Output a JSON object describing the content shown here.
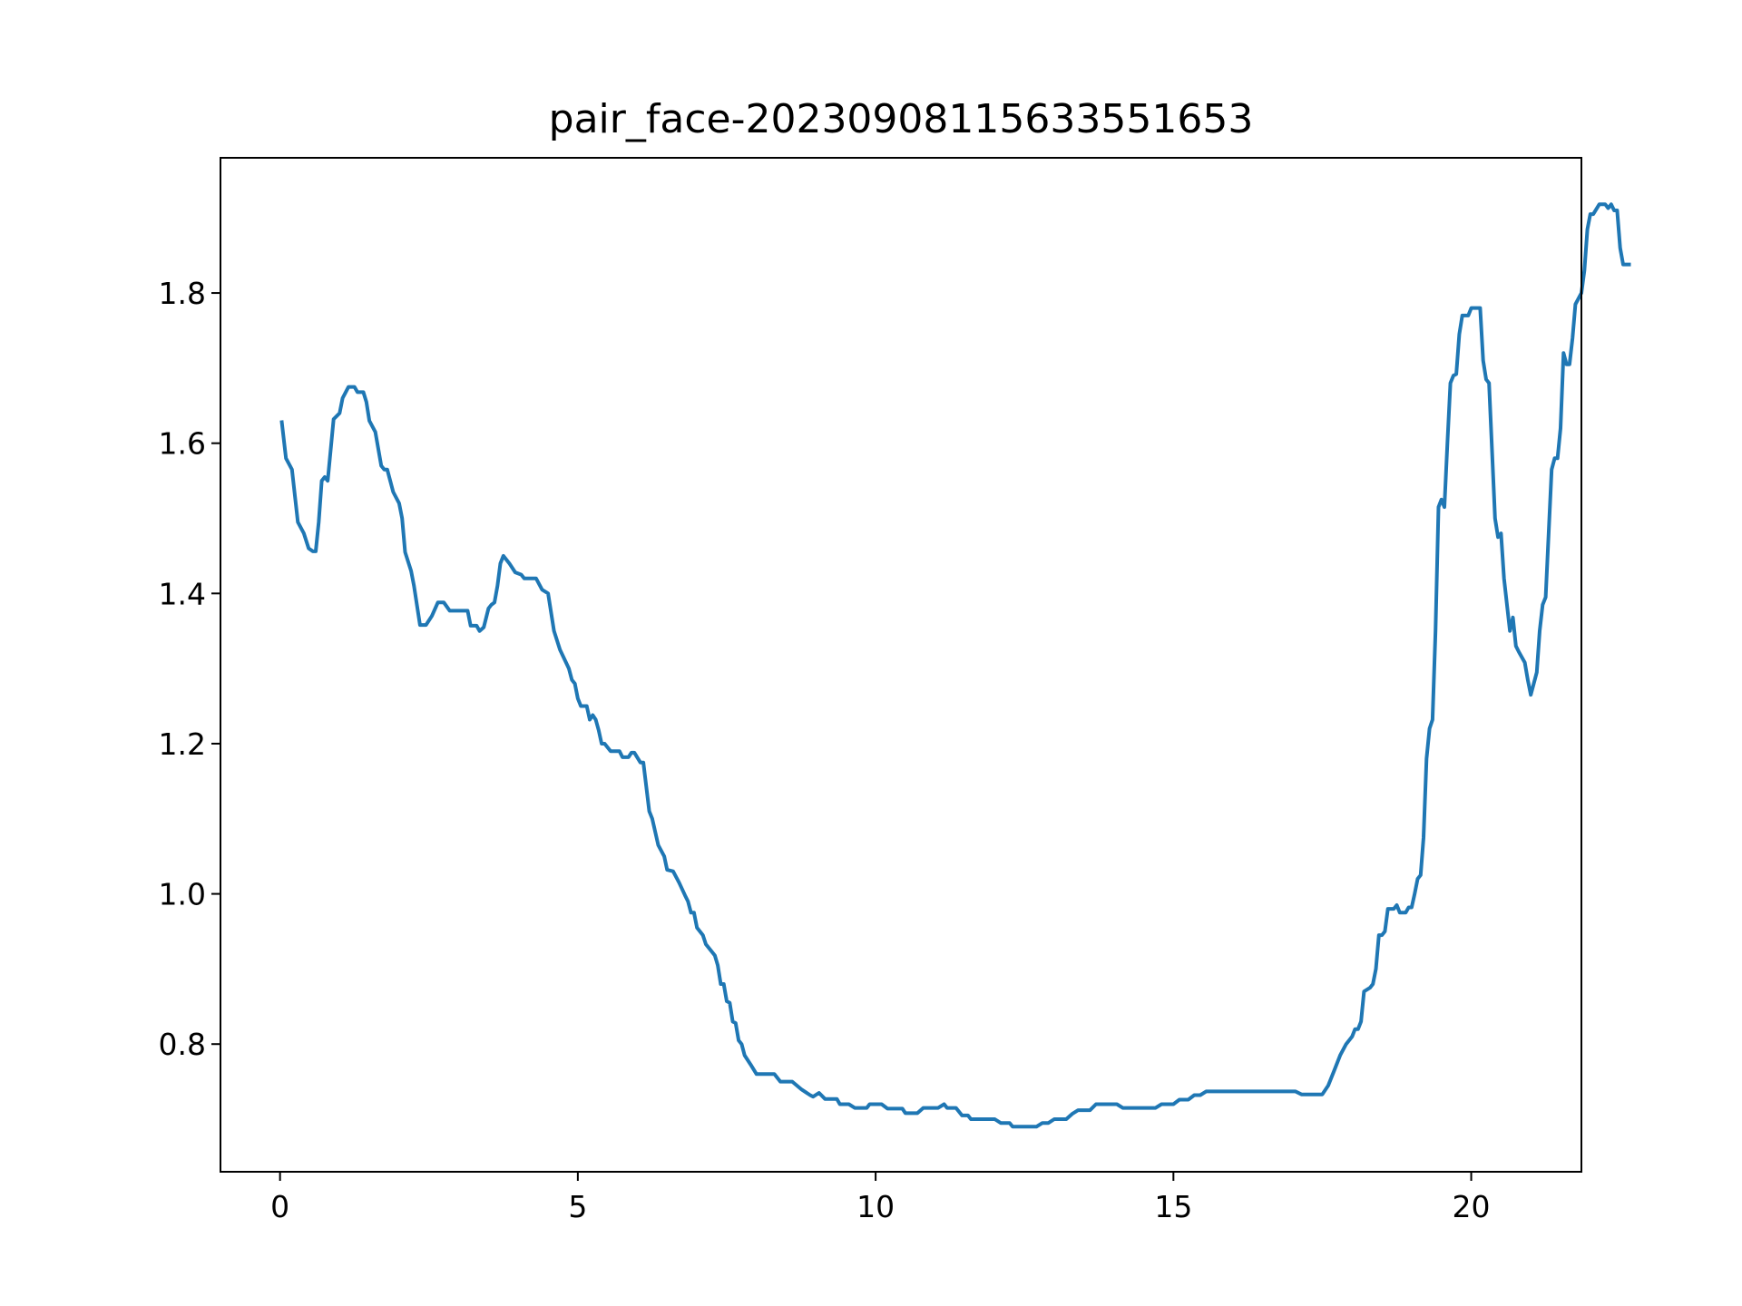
{
  "chart_data": {
    "type": "line",
    "title": "pair_face-20230908115633551653",
    "xlabel": "",
    "ylabel": "",
    "xlim": [
      -1.0,
      21.85
    ],
    "ylim": [
      0.63,
      1.98
    ],
    "grid": false,
    "legend": "none",
    "line_color": "#1f77b4",
    "xticks": [
      0,
      5,
      10,
      15,
      20
    ],
    "xtick_labels": [
      "0",
      "5",
      "10",
      "15",
      "20"
    ],
    "yticks": [
      0.8,
      1.0,
      1.2,
      1.4,
      1.6,
      1.8
    ],
    "ytick_labels": [
      "0.8",
      "1.0",
      "1.2",
      "1.4",
      "1.6",
      "1.8"
    ],
    "series": [
      {
        "points": [
          [
            0.03,
            1.628
          ],
          [
            0.1,
            1.58
          ],
          [
            0.2,
            1.565
          ],
          [
            0.3,
            1.495
          ],
          [
            0.4,
            1.48
          ],
          [
            0.48,
            1.46
          ],
          [
            0.55,
            1.456
          ],
          [
            0.6,
            1.456
          ],
          [
            0.65,
            1.495
          ],
          [
            0.7,
            1.55
          ],
          [
            0.75,
            1.555
          ],
          [
            0.8,
            1.55
          ],
          [
            0.9,
            1.632
          ],
          [
            1.0,
            1.64
          ],
          [
            1.05,
            1.66
          ],
          [
            1.15,
            1.675
          ],
          [
            1.25,
            1.675
          ],
          [
            1.3,
            1.668
          ],
          [
            1.4,
            1.668
          ],
          [
            1.45,
            1.655
          ],
          [
            1.5,
            1.63
          ],
          [
            1.6,
            1.615
          ],
          [
            1.7,
            1.57
          ],
          [
            1.75,
            1.565
          ],
          [
            1.8,
            1.565
          ],
          [
            1.9,
            1.535
          ],
          [
            2.0,
            1.52
          ],
          [
            2.05,
            1.5
          ],
          [
            2.1,
            1.455
          ],
          [
            2.2,
            1.43
          ],
          [
            2.25,
            1.41
          ],
          [
            2.35,
            1.358
          ],
          [
            2.45,
            1.358
          ],
          [
            2.55,
            1.37
          ],
          [
            2.65,
            1.388
          ],
          [
            2.75,
            1.388
          ],
          [
            2.85,
            1.377
          ],
          [
            3.05,
            1.377
          ],
          [
            3.15,
            1.377
          ],
          [
            3.2,
            1.357
          ],
          [
            3.3,
            1.357
          ],
          [
            3.35,
            1.35
          ],
          [
            3.42,
            1.355
          ],
          [
            3.5,
            1.38
          ],
          [
            3.55,
            1.385
          ],
          [
            3.6,
            1.388
          ],
          [
            3.65,
            1.41
          ],
          [
            3.7,
            1.44
          ],
          [
            3.75,
            1.45
          ],
          [
            3.85,
            1.44
          ],
          [
            3.95,
            1.428
          ],
          [
            4.05,
            1.425
          ],
          [
            4.1,
            1.42
          ],
          [
            4.3,
            1.42
          ],
          [
            4.4,
            1.405
          ],
          [
            4.5,
            1.4
          ],
          [
            4.6,
            1.35
          ],
          [
            4.7,
            1.325
          ],
          [
            4.85,
            1.3
          ],
          [
            4.9,
            1.285
          ],
          [
            4.95,
            1.28
          ],
          [
            5.0,
            1.26
          ],
          [
            5.05,
            1.25
          ],
          [
            5.15,
            1.25
          ],
          [
            5.2,
            1.232
          ],
          [
            5.25,
            1.238
          ],
          [
            5.3,
            1.232
          ],
          [
            5.35,
            1.218
          ],
          [
            5.4,
            1.2
          ],
          [
            5.45,
            1.2
          ],
          [
            5.55,
            1.19
          ],
          [
            5.7,
            1.19
          ],
          [
            5.75,
            1.182
          ],
          [
            5.85,
            1.182
          ],
          [
            5.9,
            1.188
          ],
          [
            5.95,
            1.188
          ],
          [
            6.05,
            1.175
          ],
          [
            6.1,
            1.175
          ],
          [
            6.2,
            1.11
          ],
          [
            6.25,
            1.1
          ],
          [
            6.35,
            1.065
          ],
          [
            6.45,
            1.05
          ],
          [
            6.5,
            1.032
          ],
          [
            6.6,
            1.03
          ],
          [
            6.7,
            1.015
          ],
          [
            6.8,
            0.998
          ],
          [
            6.85,
            0.99
          ],
          [
            6.9,
            0.975
          ],
          [
            6.95,
            0.975
          ],
          [
            7.0,
            0.955
          ],
          [
            7.1,
            0.945
          ],
          [
            7.15,
            0.933
          ],
          [
            7.3,
            0.918
          ],
          [
            7.35,
            0.905
          ],
          [
            7.4,
            0.88
          ],
          [
            7.45,
            0.88
          ],
          [
            7.5,
            0.857
          ],
          [
            7.55,
            0.855
          ],
          [
            7.6,
            0.83
          ],
          [
            7.65,
            0.828
          ],
          [
            7.7,
            0.805
          ],
          [
            7.75,
            0.8
          ],
          [
            7.8,
            0.785
          ],
          [
            7.9,
            0.773
          ],
          [
            8.0,
            0.76
          ],
          [
            8.3,
            0.76
          ],
          [
            8.4,
            0.75
          ],
          [
            8.6,
            0.75
          ],
          [
            8.75,
            0.74
          ],
          [
            8.9,
            0.732
          ],
          [
            8.95,
            0.73
          ],
          [
            9.05,
            0.735
          ],
          [
            9.15,
            0.727
          ],
          [
            9.35,
            0.727
          ],
          [
            9.4,
            0.72
          ],
          [
            9.55,
            0.72
          ],
          [
            9.65,
            0.715
          ],
          [
            9.85,
            0.715
          ],
          [
            9.9,
            0.72
          ],
          [
            10.1,
            0.72
          ],
          [
            10.2,
            0.714
          ],
          [
            10.45,
            0.714
          ],
          [
            10.5,
            0.708
          ],
          [
            10.7,
            0.708
          ],
          [
            10.8,
            0.715
          ],
          [
            11.05,
            0.715
          ],
          [
            11.15,
            0.72
          ],
          [
            11.2,
            0.715
          ],
          [
            11.35,
            0.715
          ],
          [
            11.45,
            0.705
          ],
          [
            11.55,
            0.705
          ],
          [
            11.6,
            0.7
          ],
          [
            11.7,
            0.7
          ],
          [
            12.0,
            0.7
          ],
          [
            12.1,
            0.695
          ],
          [
            12.25,
            0.695
          ],
          [
            12.3,
            0.69
          ],
          [
            12.7,
            0.69
          ],
          [
            12.8,
            0.695
          ],
          [
            12.9,
            0.695
          ],
          [
            13.0,
            0.7
          ],
          [
            13.2,
            0.7
          ],
          [
            13.3,
            0.707
          ],
          [
            13.4,
            0.712
          ],
          [
            13.6,
            0.712
          ],
          [
            13.7,
            0.72
          ],
          [
            14.05,
            0.72
          ],
          [
            14.15,
            0.715
          ],
          [
            14.5,
            0.715
          ],
          [
            14.7,
            0.715
          ],
          [
            14.8,
            0.72
          ],
          [
            15.0,
            0.72
          ],
          [
            15.1,
            0.726
          ],
          [
            15.25,
            0.726
          ],
          [
            15.35,
            0.732
          ],
          [
            15.45,
            0.732
          ],
          [
            15.55,
            0.737
          ],
          [
            16.9,
            0.737
          ],
          [
            17.05,
            0.737
          ],
          [
            17.15,
            0.733
          ],
          [
            17.2,
            0.733
          ],
          [
            17.5,
            0.733
          ],
          [
            17.6,
            0.745
          ],
          [
            17.7,
            0.765
          ],
          [
            17.8,
            0.785
          ],
          [
            17.9,
            0.8
          ],
          [
            18.0,
            0.81
          ],
          [
            18.05,
            0.82
          ],
          [
            18.1,
            0.82
          ],
          [
            18.15,
            0.83
          ],
          [
            18.2,
            0.87
          ],
          [
            18.3,
            0.875
          ],
          [
            18.35,
            0.88
          ],
          [
            18.4,
            0.9
          ],
          [
            18.45,
            0.945
          ],
          [
            18.5,
            0.945
          ],
          [
            18.55,
            0.95
          ],
          [
            18.6,
            0.98
          ],
          [
            18.7,
            0.98
          ],
          [
            18.75,
            0.985
          ],
          [
            18.8,
            0.975
          ],
          [
            18.9,
            0.975
          ],
          [
            18.95,
            0.982
          ],
          [
            19.0,
            0.982
          ],
          [
            19.05,
            1.0
          ],
          [
            19.1,
            1.02
          ],
          [
            19.15,
            1.025
          ],
          [
            19.2,
            1.075
          ],
          [
            19.25,
            1.18
          ],
          [
            19.3,
            1.22
          ],
          [
            19.35,
            1.232
          ],
          [
            19.4,
            1.35
          ],
          [
            19.45,
            1.515
          ],
          [
            19.5,
            1.525
          ],
          [
            19.55,
            1.515
          ],
          [
            19.6,
            1.6
          ],
          [
            19.65,
            1.68
          ],
          [
            19.7,
            1.69
          ],
          [
            19.75,
            1.692
          ],
          [
            19.8,
            1.745
          ],
          [
            19.85,
            1.77
          ],
          [
            19.95,
            1.77
          ],
          [
            20.0,
            1.78
          ],
          [
            20.1,
            1.78
          ],
          [
            20.15,
            1.78
          ],
          [
            20.2,
            1.71
          ],
          [
            20.25,
            1.685
          ],
          [
            20.3,
            1.68
          ],
          [
            20.4,
            1.5
          ],
          [
            20.45,
            1.475
          ],
          [
            20.5,
            1.48
          ],
          [
            20.55,
            1.42
          ],
          [
            20.65,
            1.35
          ],
          [
            20.7,
            1.368
          ],
          [
            20.75,
            1.33
          ],
          [
            20.8,
            1.322
          ],
          [
            20.9,
            1.308
          ],
          [
            20.95,
            1.285
          ],
          [
            21.0,
            1.265
          ],
          [
            21.1,
            1.295
          ],
          [
            21.15,
            1.35
          ],
          [
            21.2,
            1.385
          ],
          [
            21.25,
            1.395
          ],
          [
            21.3,
            1.48
          ],
          [
            21.35,
            1.565
          ],
          [
            21.4,
            1.58
          ],
          [
            21.45,
            1.58
          ],
          [
            21.5,
            1.62
          ],
          [
            21.55,
            1.72
          ],
          [
            21.6,
            1.705
          ],
          [
            21.65,
            1.705
          ],
          [
            21.7,
            1.74
          ],
          [
            21.75,
            1.785
          ],
          [
            21.85,
            1.8
          ],
          [
            21.9,
            1.83
          ],
          [
            21.95,
            1.885
          ],
          [
            22.0,
            1.905
          ],
          [
            22.05,
            1.905
          ],
          [
            22.15,
            1.918
          ],
          [
            22.25,
            1.918
          ],
          [
            22.3,
            1.913
          ],
          [
            22.35,
            1.918
          ],
          [
            22.4,
            1.91
          ],
          [
            22.45,
            1.91
          ],
          [
            22.5,
            1.86
          ],
          [
            22.55,
            1.838
          ],
          [
            22.65,
            1.838
          ]
        ]
      }
    ]
  }
}
